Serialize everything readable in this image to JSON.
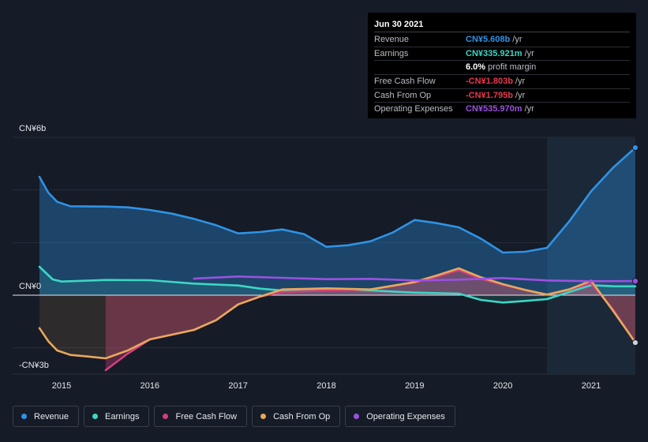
{
  "chart_data": {
    "type": "area",
    "currency": "CN¥",
    "x_ticks": [
      2015,
      2016,
      2017,
      2018,
      2019,
      2020,
      2021
    ],
    "ylim": [
      -3.0,
      6.0
    ],
    "y_tick_labels": [
      {
        "value": 6,
        "label": "CN¥6b"
      },
      {
        "value": 0,
        "label": "CN¥0"
      },
      {
        "value": -3,
        "label": "-CN¥3b"
      }
    ],
    "highlight_start": 2020.5,
    "series": [
      {
        "name": "Revenue",
        "color": "#2e93e6",
        "fill": true,
        "points": [
          [
            2014.75,
            4.5
          ],
          [
            2014.85,
            3.9
          ],
          [
            2014.95,
            3.55
          ],
          [
            2015.1,
            3.38
          ],
          [
            2015.5,
            3.37
          ],
          [
            2015.75,
            3.34
          ],
          [
            2016.0,
            3.24
          ],
          [
            2016.25,
            3.1
          ],
          [
            2016.5,
            2.9
          ],
          [
            2016.75,
            2.66
          ],
          [
            2017.0,
            2.35
          ],
          [
            2017.25,
            2.4
          ],
          [
            2017.5,
            2.5
          ],
          [
            2017.75,
            2.32
          ],
          [
            2018.0,
            1.84
          ],
          [
            2018.25,
            1.9
          ],
          [
            2018.5,
            2.05
          ],
          [
            2018.75,
            2.38
          ],
          [
            2019.0,
            2.86
          ],
          [
            2019.25,
            2.74
          ],
          [
            2019.5,
            2.58
          ],
          [
            2019.75,
            2.15
          ],
          [
            2020.0,
            1.62
          ],
          [
            2020.25,
            1.65
          ],
          [
            2020.5,
            1.8
          ],
          [
            2020.75,
            2.8
          ],
          [
            2021.0,
            3.95
          ],
          [
            2021.25,
            4.85
          ],
          [
            2021.5,
            5.608
          ]
        ]
      },
      {
        "name": "Earnings",
        "color": "#3dd6c4",
        "fill": true,
        "points": [
          [
            2014.75,
            1.08
          ],
          [
            2014.9,
            0.6
          ],
          [
            2015.0,
            0.52
          ],
          [
            2015.5,
            0.58
          ],
          [
            2016.0,
            0.57
          ],
          [
            2016.5,
            0.44
          ],
          [
            2017.0,
            0.37
          ],
          [
            2017.25,
            0.25
          ],
          [
            2017.5,
            0.18
          ],
          [
            2018.0,
            0.24
          ],
          [
            2018.5,
            0.18
          ],
          [
            2019.0,
            0.1
          ],
          [
            2019.5,
            0.06
          ],
          [
            2019.75,
            -0.18
          ],
          [
            2020.0,
            -0.28
          ],
          [
            2020.25,
            -0.22
          ],
          [
            2020.5,
            -0.15
          ],
          [
            2020.75,
            0.12
          ],
          [
            2021.0,
            0.38
          ],
          [
            2021.25,
            0.34
          ],
          [
            2021.5,
            0.336
          ]
        ]
      },
      {
        "name": "Free Cash Flow",
        "color": "#d43f7d",
        "fill": true,
        "points": [
          [
            2015.5,
            -2.85
          ],
          [
            2015.75,
            -2.22
          ],
          [
            2016.0,
            -1.68
          ],
          [
            2016.25,
            -1.5
          ],
          [
            2016.5,
            -1.32
          ],
          [
            2016.75,
            -0.95
          ],
          [
            2017.0,
            -0.35
          ],
          [
            2017.25,
            -0.05
          ],
          [
            2017.5,
            0.12
          ],
          [
            2018.0,
            0.18
          ],
          [
            2018.5,
            0.22
          ],
          [
            2019.0,
            0.48
          ],
          [
            2019.25,
            0.7
          ],
          [
            2019.5,
            0.95
          ],
          [
            2019.75,
            0.62
          ],
          [
            2020.0,
            0.4
          ],
          [
            2020.25,
            0.2
          ],
          [
            2020.5,
            0.02
          ],
          [
            2020.75,
            0.22
          ],
          [
            2021.0,
            0.45
          ],
          [
            2021.25,
            -0.55
          ],
          [
            2021.5,
            -1.803
          ]
        ]
      },
      {
        "name": "Cash From Op",
        "color": "#e8a85c",
        "fill": true,
        "points": [
          [
            2014.75,
            -1.25
          ],
          [
            2014.85,
            -1.75
          ],
          [
            2014.95,
            -2.1
          ],
          [
            2015.1,
            -2.27
          ],
          [
            2015.3,
            -2.33
          ],
          [
            2015.5,
            -2.4
          ],
          [
            2015.75,
            -2.1
          ],
          [
            2016.0,
            -1.68
          ],
          [
            2016.25,
            -1.5
          ],
          [
            2016.5,
            -1.32
          ],
          [
            2016.75,
            -0.95
          ],
          [
            2017.0,
            -0.35
          ],
          [
            2017.25,
            -0.05
          ],
          [
            2017.5,
            0.22
          ],
          [
            2018.0,
            0.26
          ],
          [
            2018.5,
            0.22
          ],
          [
            2019.0,
            0.5
          ],
          [
            2019.25,
            0.75
          ],
          [
            2019.5,
            1.02
          ],
          [
            2019.75,
            0.68
          ],
          [
            2020.0,
            0.42
          ],
          [
            2020.25,
            0.2
          ],
          [
            2020.5,
            0.02
          ],
          [
            2020.75,
            0.22
          ],
          [
            2021.0,
            0.55
          ],
          [
            2021.25,
            -0.6
          ],
          [
            2021.5,
            -1.795
          ]
        ]
      },
      {
        "name": "Operating Expenses",
        "color": "#9b51e0",
        "fill": false,
        "points": [
          [
            2016.5,
            0.63
          ],
          [
            2017.0,
            0.71
          ],
          [
            2017.5,
            0.66
          ],
          [
            2018.0,
            0.61
          ],
          [
            2018.5,
            0.62
          ],
          [
            2019.0,
            0.56
          ],
          [
            2019.5,
            0.59
          ],
          [
            2020.0,
            0.65
          ],
          [
            2020.5,
            0.56
          ],
          [
            2021.0,
            0.53
          ],
          [
            2021.5,
            0.536
          ]
        ]
      }
    ],
    "end_markers": [
      "Revenue",
      "Free Cash Flow",
      "Operating Expenses"
    ]
  },
  "tooltip": {
    "date": "Jun 30 2021",
    "rows": [
      {
        "label": "Revenue",
        "value": "CN¥5.608b",
        "unit": "/yr",
        "color": "#2e93e6"
      },
      {
        "label": "Earnings",
        "value": "CN¥335.921m",
        "unit": "/yr",
        "color": "#3dd6c4"
      },
      {
        "label": "",
        "value": "6.0%",
        "unit": "profit margin",
        "color": "#ffffff"
      },
      {
        "label": "Free Cash Flow",
        "value": "-CN¥1.803b",
        "unit": "/yr",
        "color": "#e8384f"
      },
      {
        "label": "Cash From Op",
        "value": "-CN¥1.795b",
        "unit": "/yr",
        "color": "#e8384f"
      },
      {
        "label": "Operating Expenses",
        "value": "CN¥535.970m",
        "unit": "/yr",
        "color": "#9b51e0"
      }
    ]
  },
  "legend": [
    {
      "label": "Revenue",
      "color": "#2e93e6"
    },
    {
      "label": "Earnings",
      "color": "#3dd6c4"
    },
    {
      "label": "Free Cash Flow",
      "color": "#d43f7d"
    },
    {
      "label": "Cash From Op",
      "color": "#e8a85c"
    },
    {
      "label": "Operating Expenses",
      "color": "#9b51e0"
    }
  ]
}
